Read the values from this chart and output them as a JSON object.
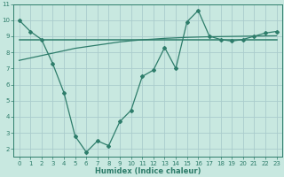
{
  "x": [
    0,
    1,
    2,
    3,
    4,
    5,
    6,
    7,
    8,
    9,
    10,
    11,
    12,
    13,
    14,
    15,
    16,
    17,
    18,
    19,
    20,
    21,
    22,
    23
  ],
  "y_main": [
    10.0,
    9.3,
    8.8,
    7.3,
    5.5,
    2.8,
    1.8,
    2.5,
    2.2,
    3.7,
    4.4,
    6.5,
    6.9,
    8.3,
    7.0,
    9.9,
    10.6,
    9.0,
    8.8,
    8.7,
    8.8,
    9.0,
    9.2,
    9.3
  ],
  "y_flat": [
    8.8,
    8.8,
    8.8,
    8.8,
    8.8,
    8.8,
    8.8,
    8.8,
    8.8,
    8.8,
    8.8,
    8.8,
    8.8,
    8.8,
    8.8,
    8.8,
    8.8,
    8.8,
    8.8,
    8.8,
    8.8,
    8.8,
    8.8,
    8.8
  ],
  "y_slope": [
    7.5,
    7.65,
    7.8,
    7.95,
    8.1,
    8.25,
    8.35,
    8.45,
    8.55,
    8.65,
    8.72,
    8.78,
    8.82,
    8.87,
    8.9,
    8.93,
    8.95,
    8.97,
    8.98,
    8.99,
    9.0,
    9.01,
    9.02,
    9.03
  ],
  "line_color": "#2E7D6B",
  "bg_color": "#C8E8E0",
  "grid_color": "#AACCCC",
  "xlabel": "Humidex (Indice chaleur)",
  "ylim": [
    1.5,
    11
  ],
  "xlim": [
    -0.5,
    23.5
  ],
  "yticks": [
    2,
    3,
    4,
    5,
    6,
    7,
    8,
    9,
    10,
    11
  ],
  "xticks": [
    0,
    1,
    2,
    3,
    4,
    5,
    6,
    7,
    8,
    9,
    10,
    11,
    12,
    13,
    14,
    15,
    16,
    17,
    18,
    19,
    20,
    21,
    22,
    23
  ]
}
